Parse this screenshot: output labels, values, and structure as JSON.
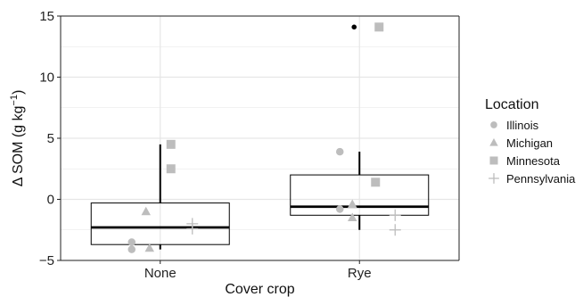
{
  "chart_data": {
    "type": "box",
    "xlabel": "Cover crop",
    "ylabel": "Δ SOM (g kg",
    "ylabel_superscript": "−1",
    "ylabel_close": ")",
    "ylim": [
      -5,
      15
    ],
    "yticks": [
      -5,
      0,
      5,
      10,
      15
    ],
    "ytick_labels": [
      "−5",
      "0",
      "5",
      "10",
      "15"
    ],
    "grid": true,
    "legend_placement": "right",
    "categories": [
      "None",
      "Rye"
    ],
    "boxes": [
      {
        "category": "None",
        "q1": -3.7,
        "median": -2.3,
        "q3": -0.3,
        "whisker_low": -4.1,
        "whisker_high": 4.5,
        "outliers": []
      },
      {
        "category": "Rye",
        "q1": -1.3,
        "median": -0.6,
        "q3": 2.0,
        "whisker_low": -2.5,
        "whisker_high": 3.9,
        "outliers": [
          14.1
        ]
      }
    ],
    "legend": {
      "title": "Location",
      "entries": [
        {
          "label": "Illinois",
          "shape": "circle"
        },
        {
          "label": "Michigan",
          "shape": "triangle"
        },
        {
          "label": "Minnesota",
          "shape": "square"
        },
        {
          "label": "Pennsylvania",
          "shape": "plus"
        }
      ]
    },
    "series": [
      {
        "name": "Illinois",
        "shape": "circle",
        "points": [
          {
            "x": "None",
            "y": -3.5
          },
          {
            "x": "None",
            "y": -4.1
          },
          {
            "x": "Rye",
            "y": 3.9
          },
          {
            "x": "Rye",
            "y": -0.8
          }
        ]
      },
      {
        "name": "Michigan",
        "shape": "triangle",
        "points": [
          {
            "x": "None",
            "y": -1.0
          },
          {
            "x": "None",
            "y": -4.0
          },
          {
            "x": "Rye",
            "y": -0.4
          },
          {
            "x": "Rye",
            "y": -1.5
          }
        ]
      },
      {
        "name": "Minnesota",
        "shape": "square",
        "points": [
          {
            "x": "None",
            "y": 4.5
          },
          {
            "x": "None",
            "y": 2.5
          },
          {
            "x": "Rye",
            "y": 14.1
          },
          {
            "x": "Rye",
            "y": 1.4
          }
        ]
      },
      {
        "name": "Pennsylvania",
        "shape": "plus",
        "points": [
          {
            "x": "None",
            "y": -2.0
          },
          {
            "x": "None",
            "y": -2.4
          },
          {
            "x": "Rye",
            "y": -1.3
          },
          {
            "x": "Rye",
            "y": -2.5
          }
        ]
      }
    ],
    "colors": {
      "points": "#bdbdbd",
      "box": "#000000",
      "grid": "#e6e6e6",
      "outlier": "#000000"
    }
  }
}
